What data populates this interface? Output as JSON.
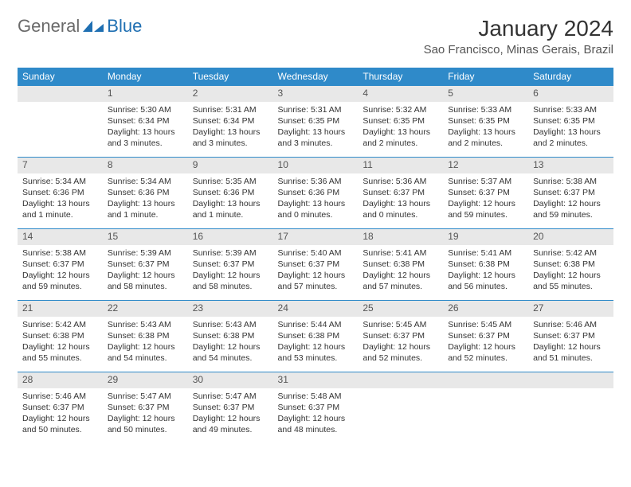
{
  "brand": {
    "general": "General",
    "blue": "Blue"
  },
  "title": "January 2024",
  "location": "Sao Francisco, Minas Gerais, Brazil",
  "colors": {
    "header_bg": "#2f8ac9",
    "rule": "#2f8ac9",
    "daynum_bg": "#e8e8e8"
  },
  "weekdays": [
    "Sunday",
    "Monday",
    "Tuesday",
    "Wednesday",
    "Thursday",
    "Friday",
    "Saturday"
  ],
  "weeks": [
    [
      {
        "day": "",
        "sunrise": "",
        "sunset": "",
        "daylight": ""
      },
      {
        "day": "1",
        "sunrise": "Sunrise: 5:30 AM",
        "sunset": "Sunset: 6:34 PM",
        "daylight": "Daylight: 13 hours and 3 minutes."
      },
      {
        "day": "2",
        "sunrise": "Sunrise: 5:31 AM",
        "sunset": "Sunset: 6:34 PM",
        "daylight": "Daylight: 13 hours and 3 minutes."
      },
      {
        "day": "3",
        "sunrise": "Sunrise: 5:31 AM",
        "sunset": "Sunset: 6:35 PM",
        "daylight": "Daylight: 13 hours and 3 minutes."
      },
      {
        "day": "4",
        "sunrise": "Sunrise: 5:32 AM",
        "sunset": "Sunset: 6:35 PM",
        "daylight": "Daylight: 13 hours and 2 minutes."
      },
      {
        "day": "5",
        "sunrise": "Sunrise: 5:33 AM",
        "sunset": "Sunset: 6:35 PM",
        "daylight": "Daylight: 13 hours and 2 minutes."
      },
      {
        "day": "6",
        "sunrise": "Sunrise: 5:33 AM",
        "sunset": "Sunset: 6:35 PM",
        "daylight": "Daylight: 13 hours and 2 minutes."
      }
    ],
    [
      {
        "day": "7",
        "sunrise": "Sunrise: 5:34 AM",
        "sunset": "Sunset: 6:36 PM",
        "daylight": "Daylight: 13 hours and 1 minute."
      },
      {
        "day": "8",
        "sunrise": "Sunrise: 5:34 AM",
        "sunset": "Sunset: 6:36 PM",
        "daylight": "Daylight: 13 hours and 1 minute."
      },
      {
        "day": "9",
        "sunrise": "Sunrise: 5:35 AM",
        "sunset": "Sunset: 6:36 PM",
        "daylight": "Daylight: 13 hours and 1 minute."
      },
      {
        "day": "10",
        "sunrise": "Sunrise: 5:36 AM",
        "sunset": "Sunset: 6:36 PM",
        "daylight": "Daylight: 13 hours and 0 minutes."
      },
      {
        "day": "11",
        "sunrise": "Sunrise: 5:36 AM",
        "sunset": "Sunset: 6:37 PM",
        "daylight": "Daylight: 13 hours and 0 minutes."
      },
      {
        "day": "12",
        "sunrise": "Sunrise: 5:37 AM",
        "sunset": "Sunset: 6:37 PM",
        "daylight": "Daylight: 12 hours and 59 minutes."
      },
      {
        "day": "13",
        "sunrise": "Sunrise: 5:38 AM",
        "sunset": "Sunset: 6:37 PM",
        "daylight": "Daylight: 12 hours and 59 minutes."
      }
    ],
    [
      {
        "day": "14",
        "sunrise": "Sunrise: 5:38 AM",
        "sunset": "Sunset: 6:37 PM",
        "daylight": "Daylight: 12 hours and 59 minutes."
      },
      {
        "day": "15",
        "sunrise": "Sunrise: 5:39 AM",
        "sunset": "Sunset: 6:37 PM",
        "daylight": "Daylight: 12 hours and 58 minutes."
      },
      {
        "day": "16",
        "sunrise": "Sunrise: 5:39 AM",
        "sunset": "Sunset: 6:37 PM",
        "daylight": "Daylight: 12 hours and 58 minutes."
      },
      {
        "day": "17",
        "sunrise": "Sunrise: 5:40 AM",
        "sunset": "Sunset: 6:37 PM",
        "daylight": "Daylight: 12 hours and 57 minutes."
      },
      {
        "day": "18",
        "sunrise": "Sunrise: 5:41 AM",
        "sunset": "Sunset: 6:38 PM",
        "daylight": "Daylight: 12 hours and 57 minutes."
      },
      {
        "day": "19",
        "sunrise": "Sunrise: 5:41 AM",
        "sunset": "Sunset: 6:38 PM",
        "daylight": "Daylight: 12 hours and 56 minutes."
      },
      {
        "day": "20",
        "sunrise": "Sunrise: 5:42 AM",
        "sunset": "Sunset: 6:38 PM",
        "daylight": "Daylight: 12 hours and 55 minutes."
      }
    ],
    [
      {
        "day": "21",
        "sunrise": "Sunrise: 5:42 AM",
        "sunset": "Sunset: 6:38 PM",
        "daylight": "Daylight: 12 hours and 55 minutes."
      },
      {
        "day": "22",
        "sunrise": "Sunrise: 5:43 AM",
        "sunset": "Sunset: 6:38 PM",
        "daylight": "Daylight: 12 hours and 54 minutes."
      },
      {
        "day": "23",
        "sunrise": "Sunrise: 5:43 AM",
        "sunset": "Sunset: 6:38 PM",
        "daylight": "Daylight: 12 hours and 54 minutes."
      },
      {
        "day": "24",
        "sunrise": "Sunrise: 5:44 AM",
        "sunset": "Sunset: 6:38 PM",
        "daylight": "Daylight: 12 hours and 53 minutes."
      },
      {
        "day": "25",
        "sunrise": "Sunrise: 5:45 AM",
        "sunset": "Sunset: 6:37 PM",
        "daylight": "Daylight: 12 hours and 52 minutes."
      },
      {
        "day": "26",
        "sunrise": "Sunrise: 5:45 AM",
        "sunset": "Sunset: 6:37 PM",
        "daylight": "Daylight: 12 hours and 52 minutes."
      },
      {
        "day": "27",
        "sunrise": "Sunrise: 5:46 AM",
        "sunset": "Sunset: 6:37 PM",
        "daylight": "Daylight: 12 hours and 51 minutes."
      }
    ],
    [
      {
        "day": "28",
        "sunrise": "Sunrise: 5:46 AM",
        "sunset": "Sunset: 6:37 PM",
        "daylight": "Daylight: 12 hours and 50 minutes."
      },
      {
        "day": "29",
        "sunrise": "Sunrise: 5:47 AM",
        "sunset": "Sunset: 6:37 PM",
        "daylight": "Daylight: 12 hours and 50 minutes."
      },
      {
        "day": "30",
        "sunrise": "Sunrise: 5:47 AM",
        "sunset": "Sunset: 6:37 PM",
        "daylight": "Daylight: 12 hours and 49 minutes."
      },
      {
        "day": "31",
        "sunrise": "Sunrise: 5:48 AM",
        "sunset": "Sunset: 6:37 PM",
        "daylight": "Daylight: 12 hours and 48 minutes."
      },
      {
        "day": "",
        "sunrise": "",
        "sunset": "",
        "daylight": ""
      },
      {
        "day": "",
        "sunrise": "",
        "sunset": "",
        "daylight": ""
      },
      {
        "day": "",
        "sunrise": "",
        "sunset": "",
        "daylight": ""
      }
    ]
  ]
}
